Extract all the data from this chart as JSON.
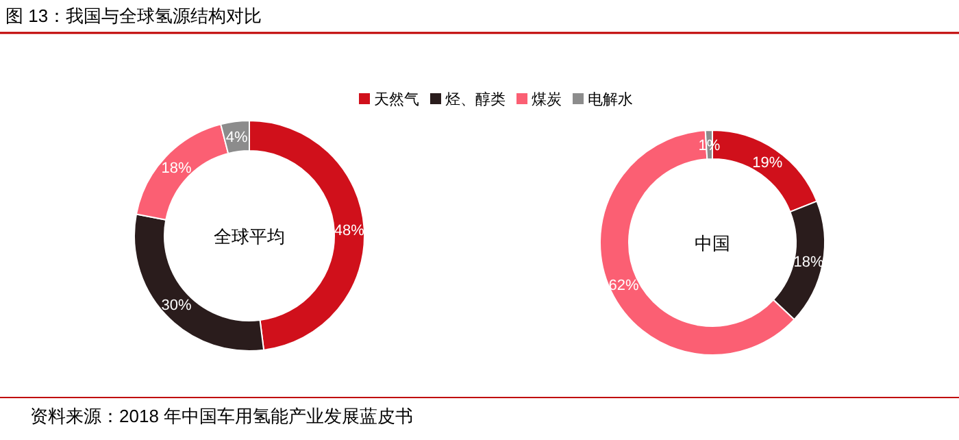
{
  "chart_data": [
    {
      "type": "donut",
      "title": "全球平均",
      "categories": [
        "天然气",
        "烃、醇类",
        "煤炭",
        "电解水"
      ],
      "values": [
        48,
        30,
        18,
        4
      ],
      "value_labels": [
        "48%",
        "30%",
        "18%",
        "4%"
      ],
      "colors": [
        "#d0101b",
        "#2a1c1c",
        "#fb5f73",
        "#8c8c8c"
      ],
      "legend": "top",
      "annotations": [
        "图 13：我国与全球氢源结构对比",
        "资料来源：2018 年中国车用氢能产业发展蓝皮书"
      ]
    },
    {
      "type": "donut",
      "title": "中国",
      "categories": [
        null,
        null,
        null,
        null
      ],
      "values": [
        19,
        18,
        62,
        1
      ],
      "value_labels": [
        "19%",
        "18%",
        "62%",
        "1%"
      ],
      "colors": [
        "#d0101b",
        "#2a1c1c",
        "#fb5f73",
        "#8c8c8c"
      ]
    }
  ]
}
